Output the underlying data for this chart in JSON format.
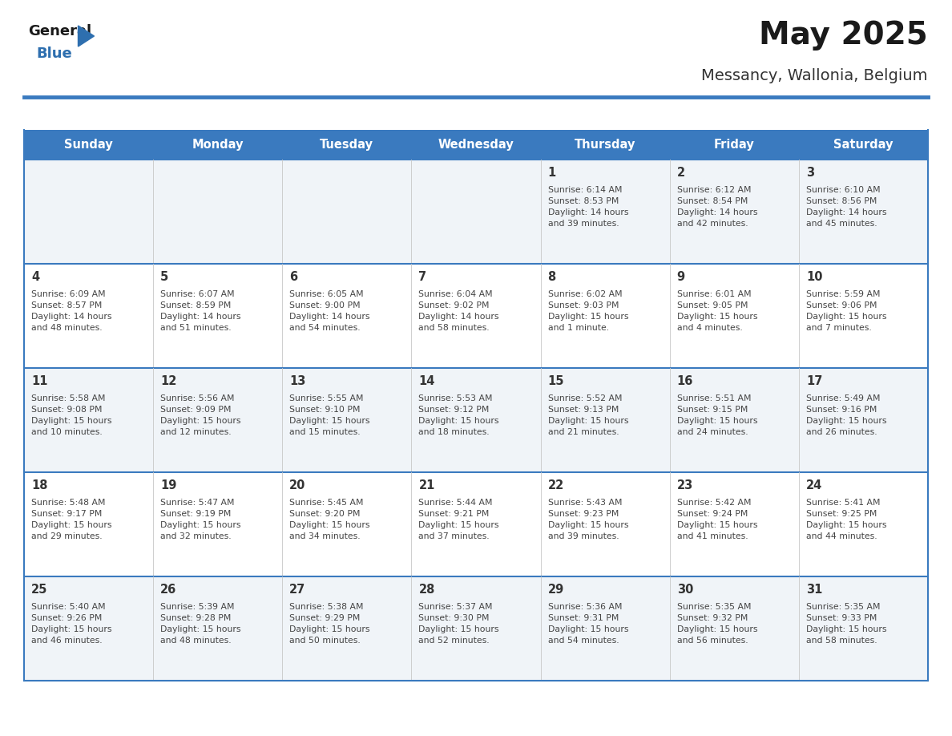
{
  "title": "May 2025",
  "subtitle": "Messancy, Wallonia, Belgium",
  "days_of_week": [
    "Sunday",
    "Monday",
    "Tuesday",
    "Wednesday",
    "Thursday",
    "Friday",
    "Saturday"
  ],
  "header_bg": "#3a7abf",
  "header_text": "#ffffff",
  "row_bg_odd": "#f0f4f8",
  "row_bg_even": "#ffffff",
  "border_color": "#3a7abf",
  "sep_line_color": "#c8c8c8",
  "day_num_color": "#333333",
  "cell_text_color": "#444444",
  "title_color": "#1a1a1a",
  "subtitle_color": "#333333",
  "logo_general_color": "#1a1a1a",
  "logo_blue_color": "#2e6faf",
  "weeks": [
    [
      {
        "day": 0,
        "text": ""
      },
      {
        "day": 0,
        "text": ""
      },
      {
        "day": 0,
        "text": ""
      },
      {
        "day": 0,
        "text": ""
      },
      {
        "day": 1,
        "text": "Sunrise: 6:14 AM\nSunset: 8:53 PM\nDaylight: 14 hours\nand 39 minutes."
      },
      {
        "day": 2,
        "text": "Sunrise: 6:12 AM\nSunset: 8:54 PM\nDaylight: 14 hours\nand 42 minutes."
      },
      {
        "day": 3,
        "text": "Sunrise: 6:10 AM\nSunset: 8:56 PM\nDaylight: 14 hours\nand 45 minutes."
      }
    ],
    [
      {
        "day": 4,
        "text": "Sunrise: 6:09 AM\nSunset: 8:57 PM\nDaylight: 14 hours\nand 48 minutes."
      },
      {
        "day": 5,
        "text": "Sunrise: 6:07 AM\nSunset: 8:59 PM\nDaylight: 14 hours\nand 51 minutes."
      },
      {
        "day": 6,
        "text": "Sunrise: 6:05 AM\nSunset: 9:00 PM\nDaylight: 14 hours\nand 54 minutes."
      },
      {
        "day": 7,
        "text": "Sunrise: 6:04 AM\nSunset: 9:02 PM\nDaylight: 14 hours\nand 58 minutes."
      },
      {
        "day": 8,
        "text": "Sunrise: 6:02 AM\nSunset: 9:03 PM\nDaylight: 15 hours\nand 1 minute."
      },
      {
        "day": 9,
        "text": "Sunrise: 6:01 AM\nSunset: 9:05 PM\nDaylight: 15 hours\nand 4 minutes."
      },
      {
        "day": 10,
        "text": "Sunrise: 5:59 AM\nSunset: 9:06 PM\nDaylight: 15 hours\nand 7 minutes."
      }
    ],
    [
      {
        "day": 11,
        "text": "Sunrise: 5:58 AM\nSunset: 9:08 PM\nDaylight: 15 hours\nand 10 minutes."
      },
      {
        "day": 12,
        "text": "Sunrise: 5:56 AM\nSunset: 9:09 PM\nDaylight: 15 hours\nand 12 minutes."
      },
      {
        "day": 13,
        "text": "Sunrise: 5:55 AM\nSunset: 9:10 PM\nDaylight: 15 hours\nand 15 minutes."
      },
      {
        "day": 14,
        "text": "Sunrise: 5:53 AM\nSunset: 9:12 PM\nDaylight: 15 hours\nand 18 minutes."
      },
      {
        "day": 15,
        "text": "Sunrise: 5:52 AM\nSunset: 9:13 PM\nDaylight: 15 hours\nand 21 minutes."
      },
      {
        "day": 16,
        "text": "Sunrise: 5:51 AM\nSunset: 9:15 PM\nDaylight: 15 hours\nand 24 minutes."
      },
      {
        "day": 17,
        "text": "Sunrise: 5:49 AM\nSunset: 9:16 PM\nDaylight: 15 hours\nand 26 minutes."
      }
    ],
    [
      {
        "day": 18,
        "text": "Sunrise: 5:48 AM\nSunset: 9:17 PM\nDaylight: 15 hours\nand 29 minutes."
      },
      {
        "day": 19,
        "text": "Sunrise: 5:47 AM\nSunset: 9:19 PM\nDaylight: 15 hours\nand 32 minutes."
      },
      {
        "day": 20,
        "text": "Sunrise: 5:45 AM\nSunset: 9:20 PM\nDaylight: 15 hours\nand 34 minutes."
      },
      {
        "day": 21,
        "text": "Sunrise: 5:44 AM\nSunset: 9:21 PM\nDaylight: 15 hours\nand 37 minutes."
      },
      {
        "day": 22,
        "text": "Sunrise: 5:43 AM\nSunset: 9:23 PM\nDaylight: 15 hours\nand 39 minutes."
      },
      {
        "day": 23,
        "text": "Sunrise: 5:42 AM\nSunset: 9:24 PM\nDaylight: 15 hours\nand 41 minutes."
      },
      {
        "day": 24,
        "text": "Sunrise: 5:41 AM\nSunset: 9:25 PM\nDaylight: 15 hours\nand 44 minutes."
      }
    ],
    [
      {
        "day": 25,
        "text": "Sunrise: 5:40 AM\nSunset: 9:26 PM\nDaylight: 15 hours\nand 46 minutes."
      },
      {
        "day": 26,
        "text": "Sunrise: 5:39 AM\nSunset: 9:28 PM\nDaylight: 15 hours\nand 48 minutes."
      },
      {
        "day": 27,
        "text": "Sunrise: 5:38 AM\nSunset: 9:29 PM\nDaylight: 15 hours\nand 50 minutes."
      },
      {
        "day": 28,
        "text": "Sunrise: 5:37 AM\nSunset: 9:30 PM\nDaylight: 15 hours\nand 52 minutes."
      },
      {
        "day": 29,
        "text": "Sunrise: 5:36 AM\nSunset: 9:31 PM\nDaylight: 15 hours\nand 54 minutes."
      },
      {
        "day": 30,
        "text": "Sunrise: 5:35 AM\nSunset: 9:32 PM\nDaylight: 15 hours\nand 56 minutes."
      },
      {
        "day": 31,
        "text": "Sunrise: 5:35 AM\nSunset: 9:33 PM\nDaylight: 15 hours\nand 58 minutes."
      }
    ]
  ]
}
